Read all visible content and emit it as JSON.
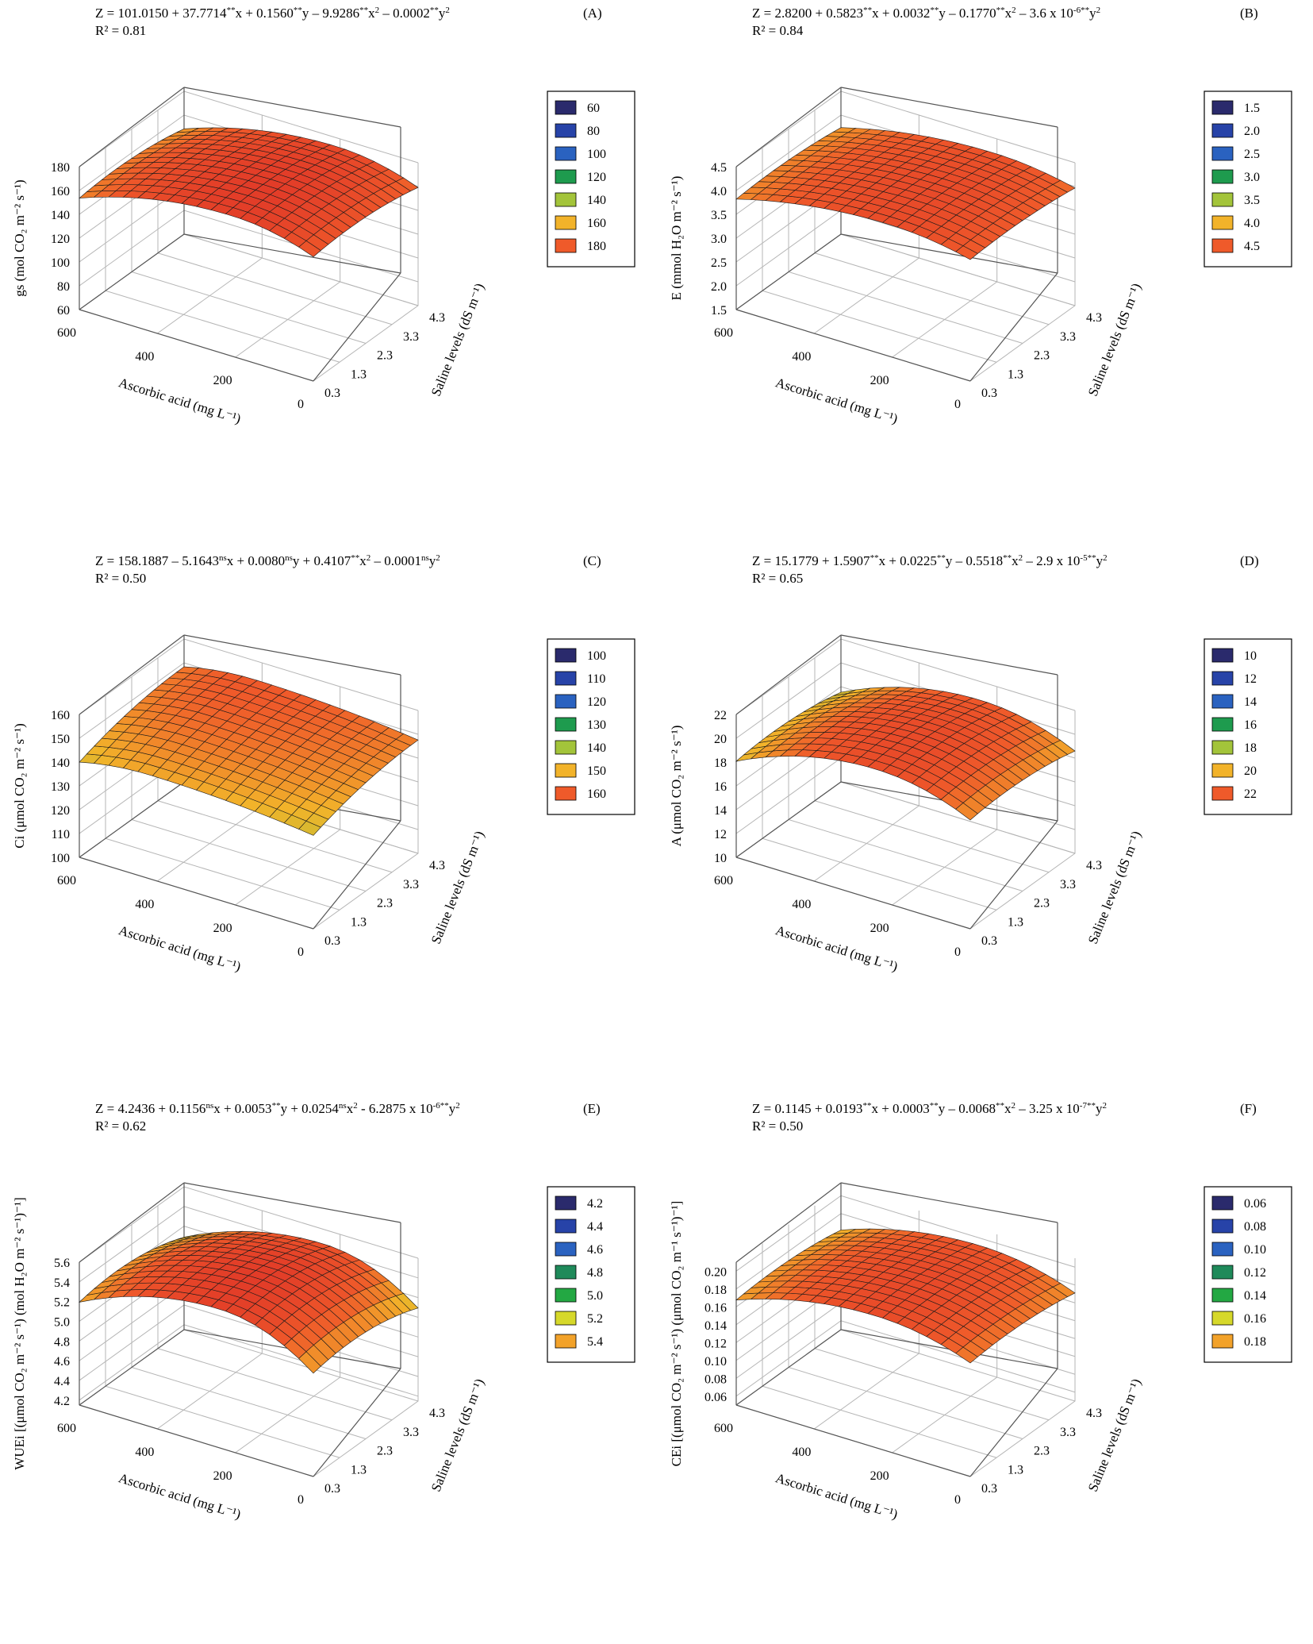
{
  "figure": {
    "panels": [
      {
        "key": "A",
        "letter": "(A)",
        "equation": {
          "parts": [
            {
              "t": "Z = 101.0150 + 37.7714"
            },
            {
              "t": "**",
              "s": "sup"
            },
            {
              "t": "x + 0.1560"
            },
            {
              "t": "**",
              "s": "sup"
            },
            {
              "t": "y – 9.9286"
            },
            {
              "t": "**",
              "s": "sup"
            },
            {
              "t": "x"
            },
            {
              "t": "2",
              "s": "sup"
            },
            {
              "t": " – 0.0002"
            },
            {
              "t": "**",
              "s": "sup"
            },
            {
              "t": "y"
            },
            {
              "t": "2",
              "s": "sup"
            }
          ]
        },
        "r2": "R² = 0.81",
        "z_label": "gs (mol CO₂ m⁻² s⁻¹)",
        "x_label": "Ascorbic acid (mg L⁻¹)",
        "y_label": "Saline levels (dS m⁻¹)"
      },
      {
        "key": "B",
        "letter": "(B)",
        "equation": {
          "parts": [
            {
              "t": "Z = 2.8200 + 0.5823"
            },
            {
              "t": "**",
              "s": "sup"
            },
            {
              "t": "x + 0.0032"
            },
            {
              "t": "**",
              "s": "sup"
            },
            {
              "t": "y – 0.1770"
            },
            {
              "t": "**",
              "s": "sup"
            },
            {
              "t": "x"
            },
            {
              "t": "2",
              "s": "sup"
            },
            {
              "t": " – 3.6 x 10"
            },
            {
              "t": "-6**",
              "s": "sup"
            },
            {
              "t": "y"
            },
            {
              "t": "2",
              "s": "sup"
            }
          ]
        },
        "r2": "R² = 0.84",
        "z_label": "E (mmol H₂O m⁻² s⁻¹)",
        "x_label": "Ascorbic acid (mg L⁻¹)",
        "y_label": "Saline levels (dS m⁻¹)"
      },
      {
        "key": "C",
        "letter": "(C)",
        "equation": {
          "parts": [
            {
              "t": "Z = 158.1887 – 5.1643"
            },
            {
              "t": "ns",
              "s": "sup"
            },
            {
              "t": "x + 0.0080"
            },
            {
              "t": "ns",
              "s": "sup"
            },
            {
              "t": "y + 0.4107"
            },
            {
              "t": "**",
              "s": "sup"
            },
            {
              "t": "x"
            },
            {
              "t": "2",
              "s": "sup"
            },
            {
              "t": " – 0.0001"
            },
            {
              "t": "ns",
              "s": "sup"
            },
            {
              "t": "y"
            },
            {
              "t": "2",
              "s": "sup"
            }
          ]
        },
        "r2": "R² = 0.50",
        "z_label": "Ci (μmol CO₂ m⁻² s⁻¹)",
        "x_label": "Ascorbic acid (mg L⁻¹)",
        "y_label": "Saline levels (dS m⁻¹)"
      },
      {
        "key": "D",
        "letter": "(D)",
        "equation": {
          "parts": [
            {
              "t": "Z = 15.1779 + 1.5907"
            },
            {
              "t": "**",
              "s": "sup"
            },
            {
              "t": "x + 0.0225"
            },
            {
              "t": "**",
              "s": "sup"
            },
            {
              "t": "y – 0.5518"
            },
            {
              "t": "**",
              "s": "sup"
            },
            {
              "t": "x"
            },
            {
              "t": "2",
              "s": "sup"
            },
            {
              "t": " – 2.9 x 10"
            },
            {
              "t": "-5**",
              "s": "sup"
            },
            {
              "t": "y"
            },
            {
              "t": "2",
              "s": "sup"
            }
          ]
        },
        "r2": "R² = 0.65",
        "z_label": "A (μmol CO₂ m⁻² s⁻¹)",
        "x_label": "Ascorbic acid (mg L⁻¹)",
        "y_label": "Saline levels (dS m⁻¹)"
      },
      {
        "key": "E",
        "letter": "(E)",
        "equation": {
          "parts": [
            {
              "t": "Z = 4.2436 + 0.1156"
            },
            {
              "t": "ns",
              "s": "sup"
            },
            {
              "t": "x + 0.0053"
            },
            {
              "t": "**",
              "s": "sup"
            },
            {
              "t": "y + 0.0254"
            },
            {
              "t": "ns",
              "s": "sup"
            },
            {
              "t": "x"
            },
            {
              "t": "2",
              "s": "sup"
            },
            {
              "t": " - 6.2875 x 10"
            },
            {
              "t": "-6**",
              "s": "sup"
            },
            {
              "t": "y"
            },
            {
              "t": "2",
              "s": "sup"
            }
          ]
        },
        "r2": "R² = 0.62",
        "z_label": "WUEi [(μmol CO₂ m⁻² s⁻¹) (mol H₂O m⁻² s⁻¹)⁻¹]",
        "x_label": "Ascorbic acid (mg L⁻¹)",
        "y_label": "Saline levels (dS m⁻¹)"
      },
      {
        "key": "F",
        "letter": "(F)",
        "equation": {
          "parts": [
            {
              "t": "Z = 0.1145 + 0.0193"
            },
            {
              "t": "**",
              "s": "sup"
            },
            {
              "t": "x + 0.0003"
            },
            {
              "t": "**",
              "s": "sup"
            },
            {
              "t": "y – 0.0068"
            },
            {
              "t": "**",
              "s": "sup"
            },
            {
              "t": "x"
            },
            {
              "t": "2",
              "s": "sup"
            },
            {
              "t": " – 3.25 x 10"
            },
            {
              "t": "-7**",
              "s": "sup"
            },
            {
              "t": "y"
            },
            {
              "t": "2",
              "s": "sup"
            }
          ]
        },
        "r2": "R² = 0.50",
        "z_label": "CEi [(μmol CO₂ m⁻² s⁻¹) (μmol CO₂ m⁻¹ s⁻¹)⁻¹]",
        "x_label": "Ascorbic acid (mg L⁻¹)",
        "y_label": "Saline levels (dS m⁻¹)"
      }
    ]
  },
  "chart_data": [
    {
      "key": "A",
      "type": "surface3d",
      "title": "(A)",
      "x_ticks": [
        "600",
        "400",
        "200",
        "0"
      ],
      "x_range": [
        0,
        600
      ],
      "y_ticks": [
        "0.3",
        "1.3",
        "2.3",
        "3.3",
        "4.3"
      ],
      "y_range": [
        0.3,
        4.3
      ],
      "z_ticks": [
        "60",
        "80",
        "100",
        "120",
        "140",
        "160",
        "180"
      ],
      "z_range": [
        60,
        180
      ],
      "legend": [
        "60",
        "80",
        "100",
        "120",
        "140",
        "160",
        "180"
      ],
      "legend_colors": [
        "#2a2a6c",
        "#2743a8",
        "#2a62c0",
        "#1e9b4e",
        "#a3c43a",
        "#f2b32a",
        "#ef5a2a"
      ],
      "surface": {
        "zmin": 111,
        "zmax": 180,
        "ridge": 0.65,
        "tilt": -1,
        "front_drop": 1.0,
        "back_drop": 0.52
      }
    },
    {
      "key": "B",
      "type": "surface3d",
      "title": "(B)",
      "x_ticks": [
        "600",
        "400",
        "200",
        "0"
      ],
      "x_range": [
        0,
        600
      ],
      "y_ticks": [
        "0.3",
        "1.3",
        "2.3",
        "3.3",
        "4.3"
      ],
      "y_range": [
        0.3,
        4.3
      ],
      "z_ticks": [
        "1.5",
        "2.0",
        "2.5",
        "3.0",
        "3.5",
        "4.0",
        "4.5"
      ],
      "z_range": [
        1.5,
        4.5
      ],
      "legend": [
        "1.5",
        "2.0",
        "2.5",
        "3.0",
        "3.5",
        "4.0",
        "4.5"
      ],
      "legend_colors": [
        "#2a2a6c",
        "#2743a8",
        "#2a62c0",
        "#1e9b4e",
        "#a3c43a",
        "#f2b32a",
        "#ef5a2a"
      ],
      "surface": {
        "zmin": 3.2,
        "zmax": 4.3,
        "ridge": 0.65,
        "tilt": -1,
        "front_drop": 1.0,
        "back_drop": 0.6
      }
    },
    {
      "key": "C",
      "type": "surface3d",
      "title": "(C)",
      "x_ticks": [
        "600",
        "400",
        "200",
        "0"
      ],
      "x_range": [
        0,
        600
      ],
      "y_ticks": [
        "0.3",
        "1.3",
        "2.3",
        "3.3",
        "4.3"
      ],
      "y_range": [
        0.3,
        4.3
      ],
      "z_ticks": [
        "100",
        "110",
        "120",
        "130",
        "140",
        "150",
        "160"
      ],
      "z_range": [
        100,
        160
      ],
      "legend": [
        "100",
        "110",
        "120",
        "130",
        "140",
        "150",
        "160"
      ],
      "legend_colors": [
        "#2a2a6c",
        "#2743a8",
        "#2a62c0",
        "#1e9b4e",
        "#a3c43a",
        "#f2b32a",
        "#ef5a2a"
      ],
      "surface": {
        "zmin": 124,
        "zmax": 152,
        "ridge": 0.3,
        "tilt": 1,
        "front_drop": 0.2,
        "back_drop": 0.9
      }
    },
    {
      "key": "D",
      "type": "surface3d",
      "title": "(D)",
      "x_ticks": [
        "600",
        "400",
        "200",
        "0"
      ],
      "x_range": [
        0,
        600
      ],
      "y_ticks": [
        "0.3",
        "1.3",
        "2.3",
        "3.3",
        "4.3"
      ],
      "y_range": [
        0.3,
        4.3
      ],
      "z_ticks": [
        "10",
        "12",
        "14",
        "16",
        "18",
        "20",
        "22"
      ],
      "z_range": [
        10,
        22
      ],
      "legend": [
        "10",
        "12",
        "14",
        "16",
        "18",
        "20",
        "22"
      ],
      "legend_colors": [
        "#2a2a6c",
        "#2743a8",
        "#2a62c0",
        "#1e9b4e",
        "#a3c43a",
        "#f2b32a",
        "#ef5a2a"
      ],
      "surface": {
        "zmin": 14,
        "zmax": 21.2,
        "ridge": 0.6,
        "tilt": -1,
        "front_drop": 1.0,
        "back_drop": 0.7
      }
    },
    {
      "key": "E",
      "type": "surface3d",
      "title": "(E)",
      "x_ticks": [
        "600",
        "400",
        "200",
        "0"
      ],
      "x_range": [
        0,
        600
      ],
      "y_ticks": [
        "0.3",
        "1.3",
        "2.3",
        "3.3",
        "4.3"
      ],
      "y_range": [
        0.3,
        4.3
      ],
      "z_ticks": [
        "4.2",
        "4.4",
        "4.6",
        "4.8",
        "5.0",
        "5.2",
        "5.4",
        "5.6"
      ],
      "z_range": [
        4.15,
        5.6
      ],
      "legend": [
        "4.2",
        "4.4",
        "4.6",
        "4.8",
        "5.0",
        "5.2",
        "5.4"
      ],
      "legend_colors": [
        "#2a2a6c",
        "#2743a8",
        "#2a62c0",
        "#1f8a5a",
        "#23a843",
        "#d6d82a",
        "#f2a22a"
      ],
      "surface": {
        "zmin": 4.2,
        "zmax": 5.6,
        "ridge": 0.6,
        "tilt": -1,
        "front_drop": 1.0,
        "back_drop": 0.45
      }
    },
    {
      "key": "F",
      "type": "surface3d",
      "title": "(F)",
      "x_ticks": [
        "600",
        "400",
        "200",
        "0"
      ],
      "x_range": [
        0,
        600
      ],
      "y_ticks": [
        "0.3",
        "1.3",
        "2.3",
        "3.3",
        "4.3"
      ],
      "y_range": [
        0.3,
        4.3
      ],
      "z_ticks": [
        "0.06",
        "0.08",
        "0.10",
        "0.12",
        "0.14",
        "0.16",
        "0.18",
        "0.20"
      ],
      "z_range": [
        0.05,
        0.21
      ],
      "legend": [
        "0.06",
        "0.08",
        "0.10",
        "0.12",
        "0.14",
        "0.16",
        "0.18"
      ],
      "legend_colors": [
        "#2a2a6c",
        "#2743a8",
        "#2a62c0",
        "#1f8a5a",
        "#23a843",
        "#d6d82a",
        "#f2a22a"
      ],
      "surface": {
        "zmin": 0.12,
        "zmax": 0.2,
        "ridge": 0.6,
        "tilt": -1,
        "front_drop": 1.0,
        "back_drop": 0.65
      }
    }
  ]
}
